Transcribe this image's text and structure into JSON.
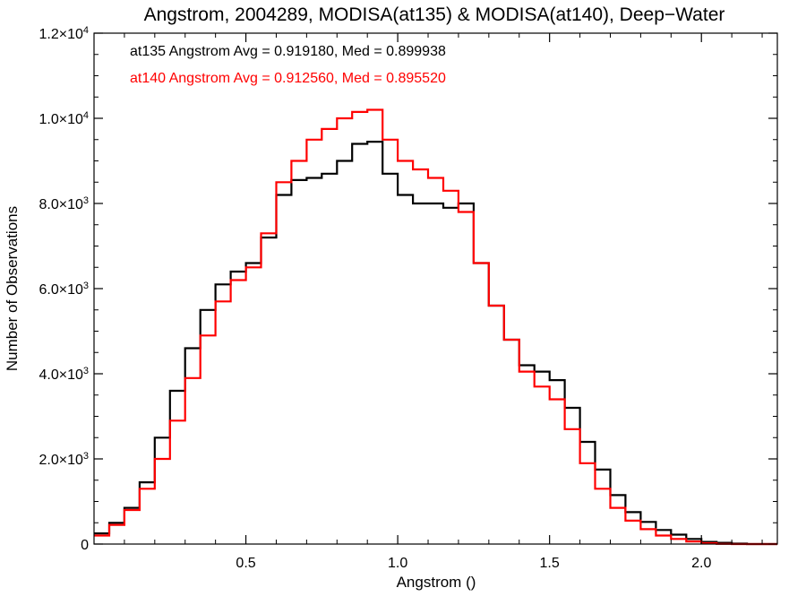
{
  "chart_data": {
    "type": "line",
    "title": "Angstrom, 2004289, MODISA(at135) & MODISA(at140), Deep−Water",
    "xlabel": "Angstrom ()",
    "ylabel": "Number of Observations",
    "xlim": [
      0.0,
      2.25
    ],
    "ylim": [
      0,
      12000
    ],
    "x_ticks": [
      {
        "value": 0.5,
        "label": "0.5"
      },
      {
        "value": 1.0,
        "label": "1.0"
      },
      {
        "value": 1.5,
        "label": "1.5"
      },
      {
        "value": 2.0,
        "label": "2.0"
      }
    ],
    "y_ticks": [
      {
        "value": 0,
        "label": "0"
      },
      {
        "value": 2000,
        "label": "2.0×10",
        "exp": "3"
      },
      {
        "value": 4000,
        "label": "4.0×10",
        "exp": "3"
      },
      {
        "value": 6000,
        "label": "6.0×10",
        "exp": "3"
      },
      {
        "value": 8000,
        "label": "8.0×10",
        "exp": "3"
      },
      {
        "value": 10000,
        "label": "1.0×10",
        "exp": "4"
      },
      {
        "value": 12000,
        "label": "1.2×10",
        "exp": "4"
      }
    ],
    "grid": false,
    "annotations": [
      {
        "text": "at135 Angstrom Avg = 0.919180, Med = 0.899938",
        "color": "#000000"
      },
      {
        "text": "at140 Angstrom Avg = 0.912560, Med = 0.895520",
        "color": "#ff0000"
      }
    ],
    "series": [
      {
        "color": "#000000",
        "x": [
          0.0,
          0.05,
          0.1,
          0.15,
          0.2,
          0.25,
          0.3,
          0.35,
          0.4,
          0.45,
          0.5,
          0.55,
          0.6,
          0.65,
          0.7,
          0.75,
          0.8,
          0.85,
          0.9,
          0.95,
          1.0,
          1.05,
          1.1,
          1.15,
          1.2,
          1.25,
          1.3,
          1.35,
          1.4,
          1.45,
          1.5,
          1.55,
          1.6,
          1.65,
          1.7,
          1.75,
          1.8,
          1.85,
          1.9,
          1.95,
          2.0,
          2.05,
          2.1,
          2.15,
          2.2,
          2.25
        ],
        "values": [
          250,
          500,
          850,
          1450,
          2500,
          3600,
          4600,
          5500,
          6100,
          6400,
          6600,
          7200,
          8200,
          8550,
          8600,
          8700,
          9000,
          9400,
          9450,
          8700,
          8200,
          8000,
          8000,
          7900,
          8000,
          6600,
          5600,
          4800,
          4200,
          4050,
          3850,
          3200,
          2400,
          1750,
          1150,
          750,
          520,
          330,
          220,
          120,
          50,
          30,
          10,
          0,
          0,
          0
        ]
      },
      {
        "color": "#ff0000",
        "x": [
          0.0,
          0.05,
          0.1,
          0.15,
          0.2,
          0.25,
          0.3,
          0.35,
          0.4,
          0.45,
          0.5,
          0.55,
          0.6,
          0.65,
          0.7,
          0.75,
          0.8,
          0.85,
          0.9,
          0.95,
          1.0,
          1.05,
          1.1,
          1.15,
          1.2,
          1.25,
          1.3,
          1.35,
          1.4,
          1.45,
          1.5,
          1.55,
          1.6,
          1.65,
          1.7,
          1.75,
          1.8,
          1.85,
          1.9,
          1.95,
          2.0,
          2.05,
          2.1,
          2.15,
          2.2,
          2.25
        ],
        "values": [
          200,
          450,
          800,
          1300,
          2000,
          2900,
          3900,
          4900,
          5700,
          6200,
          6500,
          7300,
          8500,
          9000,
          9500,
          9750,
          10000,
          10150,
          10200,
          9500,
          9000,
          8800,
          8600,
          8300,
          7800,
          6600,
          5600,
          4800,
          4050,
          3700,
          3400,
          2700,
          1900,
          1300,
          850,
          550,
          350,
          200,
          120,
          60,
          20,
          5,
          0,
          0,
          0,
          0
        ]
      }
    ]
  }
}
